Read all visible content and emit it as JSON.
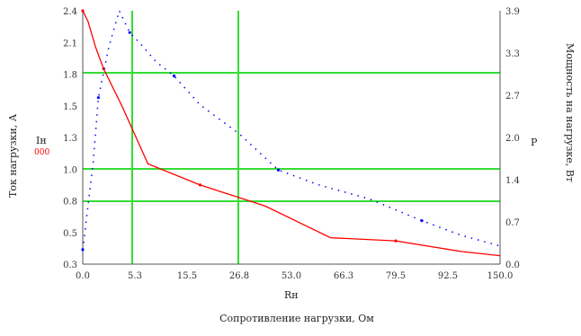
{
  "chart_data": {
    "type": "line",
    "title": "",
    "xlabel": "Сопротивление нагрузки, Ом",
    "x_var_label": "Rн",
    "ylabel_left": "Ток нагрузки, А",
    "ylabel_right": "Мощность на нагрузке, Вт",
    "left_marker_label": "Iн",
    "left_marker_sub": "000",
    "right_marker_label": "P",
    "xlim": [
      0,
      160
    ],
    "ylim_left": [
      0,
      2.4
    ],
    "ylim_right": [
      0,
      3.5
    ],
    "x_ticks": [
      "0.0",
      "5.3",
      "15.5",
      "26.8",
      "53.0",
      "66.3",
      "79.5",
      "92.5",
      "150.0"
    ],
    "y_left_ticks": [
      "0.3",
      "0.5",
      "0.8",
      "1.0",
      "1.3",
      "1.5",
      "1.8",
      "2.1",
      "2.4"
    ],
    "y_right_ticks": [
      "0.0",
      "0.7",
      "1.4",
      "2.0",
      "2.7",
      "3.3",
      "3.9"
    ],
    "grid": "green",
    "series": [
      {
        "name": "Iн",
        "axis": "left",
        "color": "#ff0000",
        "style": "line",
        "x": [
          0,
          2,
          5,
          8,
          15,
          25,
          45,
          70,
          95,
          120,
          145,
          160
        ],
        "y": [
          2.4,
          2.3,
          2.05,
          1.85,
          1.5,
          0.95,
          0.75,
          0.55,
          0.25,
          0.22,
          0.12,
          0.08
        ]
      },
      {
        "name": "P",
        "axis": "right",
        "color": "#0000ff",
        "style": "dotted",
        "x": [
          0,
          2,
          4,
          6,
          10,
          14,
          18,
          22,
          28,
          35,
          45,
          60,
          75,
          90,
          110,
          130,
          145,
          160
        ],
        "y": [
          0.2,
          0.8,
          1.4,
          2.3,
          3.0,
          3.5,
          3.2,
          3.05,
          2.8,
          2.6,
          2.2,
          1.8,
          1.3,
          1.1,
          0.9,
          0.6,
          0.4,
          0.25
        ]
      }
    ]
  }
}
